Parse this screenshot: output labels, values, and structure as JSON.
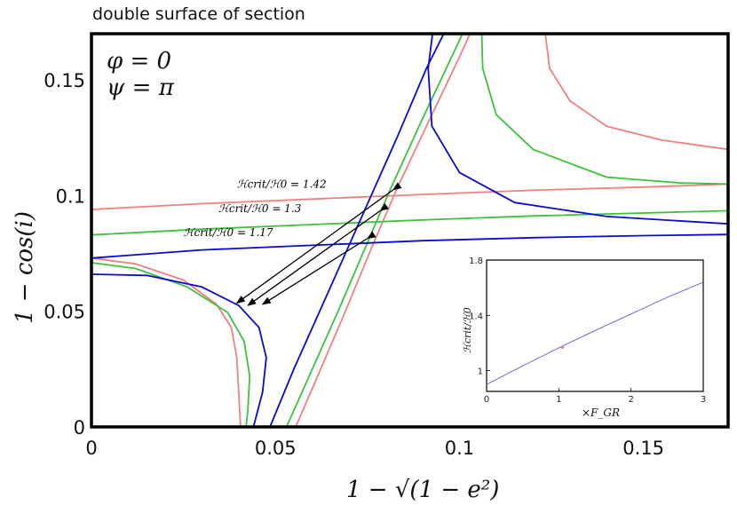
{
  "title": "double surface of section",
  "chart_data": [
    {
      "type": "line",
      "xlabel": "1 − √(1 − e²)",
      "ylabel": "1 − cos(i)",
      "xlim": [
        0,
        0.173
      ],
      "ylim": [
        0,
        0.17
      ],
      "xticks": [
        {
          "v": 0,
          "label": "0"
        },
        {
          "v": 0.05,
          "label": "0.05"
        },
        {
          "v": 0.1,
          "label": "0.1"
        },
        {
          "v": 0.15,
          "label": "0.15"
        }
      ],
      "yticks": [
        {
          "v": 0,
          "label": "0"
        },
        {
          "v": 0.05,
          "label": "0.05"
        },
        {
          "v": 0.1,
          "label": "0.1"
        },
        {
          "v": 0.15,
          "label": "0.15"
        }
      ],
      "annotation_params": {
        "line1": "φ = 0",
        "line2": "ψ = π"
      },
      "series": [
        {
          "color": "#f08080",
          "curves": [
            [
              [
                0,
                0.094
              ],
              [
                0.03,
                0.0965
              ],
              [
                0.06,
                0.0985
              ],
              [
                0.09,
                0.1005
              ],
              [
                0.12,
                0.1023
              ],
              [
                0.15,
                0.1037
              ],
              [
                0.173,
                0.105
              ]
            ],
            [
              [
                0.0,
                0.073
              ],
              [
                0.012,
                0.0705
              ],
              [
                0.025,
                0.0635
              ],
              [
                0.034,
                0.053
              ],
              [
                0.038,
                0.043
              ],
              [
                0.0395,
                0.03
              ],
              [
                0.04,
                0.015
              ],
              [
                0.0405,
                0
              ]
            ],
            [
              [
                0.0555,
                0
              ],
              [
                0.062,
                0.024
              ],
              [
                0.069,
                0.05
              ],
              [
                0.076,
                0.077
              ],
              [
                0.083,
                0.103
              ],
              [
                0.091,
                0.13
              ],
              [
                0.1,
                0.16
              ],
              [
                0.104,
                0.174
              ]
            ],
            [
              [
                0.123,
                0.174
              ],
              [
                0.1245,
                0.155
              ],
              [
                0.13,
                0.141
              ],
              [
                0.14,
                0.13
              ],
              [
                0.155,
                0.124
              ],
              [
                0.173,
                0.12
              ]
            ]
          ]
        },
        {
          "color": "#3cc23c",
          "curves": [
            [
              [
                0,
                0.083
              ],
              [
                0.03,
                0.0855
              ],
              [
                0.06,
                0.0875
              ],
              [
                0.09,
                0.0895
              ],
              [
                0.12,
                0.0912
              ],
              [
                0.15,
                0.0925
              ],
              [
                0.173,
                0.0935
              ]
            ],
            [
              [
                0.0,
                0.071
              ],
              [
                0.012,
                0.0685
              ],
              [
                0.026,
                0.0605
              ],
              [
                0.037,
                0.0495
              ],
              [
                0.0415,
                0.037
              ],
              [
                0.043,
                0.022
              ],
              [
                0.0425,
                0.007
              ],
              [
                0.042,
                0
              ]
            ],
            [
              [
                0.053,
                0
              ],
              [
                0.06,
                0.025
              ],
              [
                0.067,
                0.05
              ],
              [
                0.074,
                0.076
              ],
              [
                0.081,
                0.102
              ],
              [
                0.089,
                0.13
              ],
              [
                0.097,
                0.157
              ],
              [
                0.102,
                0.174
              ]
            ],
            [
              [
                0.106,
                0.174
              ],
              [
                0.1063,
                0.155
              ],
              [
                0.11,
                0.135
              ],
              [
                0.12,
                0.12
              ],
              [
                0.14,
                0.108
              ],
              [
                0.16,
                0.1055
              ],
              [
                0.173,
                0.105
              ]
            ]
          ]
        },
        {
          "color": "#0a0ad0",
          "curves": [
            [
              [
                0,
                0.073
              ],
              [
                0.03,
                0.0765
              ],
              [
                0.06,
                0.0785
              ],
              [
                0.09,
                0.0805
              ],
              [
                0.12,
                0.0818
              ],
              [
                0.15,
                0.0827
              ],
              [
                0.173,
                0.0832
              ]
            ],
            [
              [
                0.0,
                0.066
              ],
              [
                0.015,
                0.0655
              ],
              [
                0.03,
                0.0605
              ],
              [
                0.04,
                0.0525
              ],
              [
                0.0455,
                0.043
              ],
              [
                0.0475,
                0.03
              ],
              [
                0.0465,
                0.015
              ],
              [
                0.044,
                0
              ]
            ],
            [
              [
                0.0485,
                0
              ],
              [
                0.055,
                0.025
              ],
              [
                0.062,
                0.05
              ],
              [
                0.069,
                0.075
              ],
              [
                0.076,
                0.1
              ],
              [
                0.083,
                0.125
              ],
              [
                0.091,
                0.155
              ],
              [
                0.097,
                0.174
              ]
            ],
            [
              [
                0.093,
                0.174
              ],
              [
                0.0915,
                0.155
              ],
              [
                0.0925,
                0.13
              ],
              [
                0.1,
                0.11
              ],
              [
                0.115,
                0.097
              ],
              [
                0.14,
                0.091
              ],
              [
                0.173,
                0.0878
              ]
            ]
          ]
        }
      ],
      "labels": [
        {
          "text": "ℋcrit/ℋ0 = 1.42",
          "at": [
            0.0395,
            0.1035
          ]
        },
        {
          "text": "ℋcrit/ℋ0 = 1.3",
          "at": [
            0.0345,
            0.0928
          ]
        },
        {
          "text": "ℋcrit/ℋ0 = 1.17",
          "at": [
            0.025,
            0.0825
          ]
        }
      ],
      "arrows": [
        {
          "from": [
            0.082,
            0.1025
          ],
          "to": [
            0.0395,
            0.0535
          ]
        },
        {
          "from": [
            0.0785,
            0.0935
          ],
          "to": [
            0.0425,
            0.0525
          ]
        },
        {
          "from": [
            0.075,
            0.0815
          ],
          "to": [
            0.0465,
            0.053
          ]
        }
      ]
    },
    {
      "type": "line",
      "xlabel": "×F_GR",
      "ylabel": "ℋcrit/ℋ0",
      "xlim": [
        0,
        3
      ],
      "ylim": [
        0.85,
        1.8
      ],
      "xticks": [
        {
          "v": 0,
          "label": "0"
        },
        {
          "v": 1,
          "label": "1"
        },
        {
          "v": 2,
          "label": "2"
        },
        {
          "v": 3,
          "label": "3"
        }
      ],
      "yticks": [
        {
          "v": 1,
          "label": "1"
        },
        {
          "v": 1.4,
          "label": "1.4"
        },
        {
          "v": 1.8,
          "label": "1.8"
        }
      ],
      "series": [
        {
          "color": "#6b6bd6",
          "x": [
            0,
            0.5,
            1,
            1.5,
            2,
            2.5,
            3
          ],
          "y": [
            0.9,
            1.035,
            1.165,
            1.29,
            1.41,
            1.53,
            1.64
          ]
        }
      ],
      "marker": {
        "x": 1.05,
        "y": 1.17,
        "color": "#f08080"
      }
    }
  ]
}
